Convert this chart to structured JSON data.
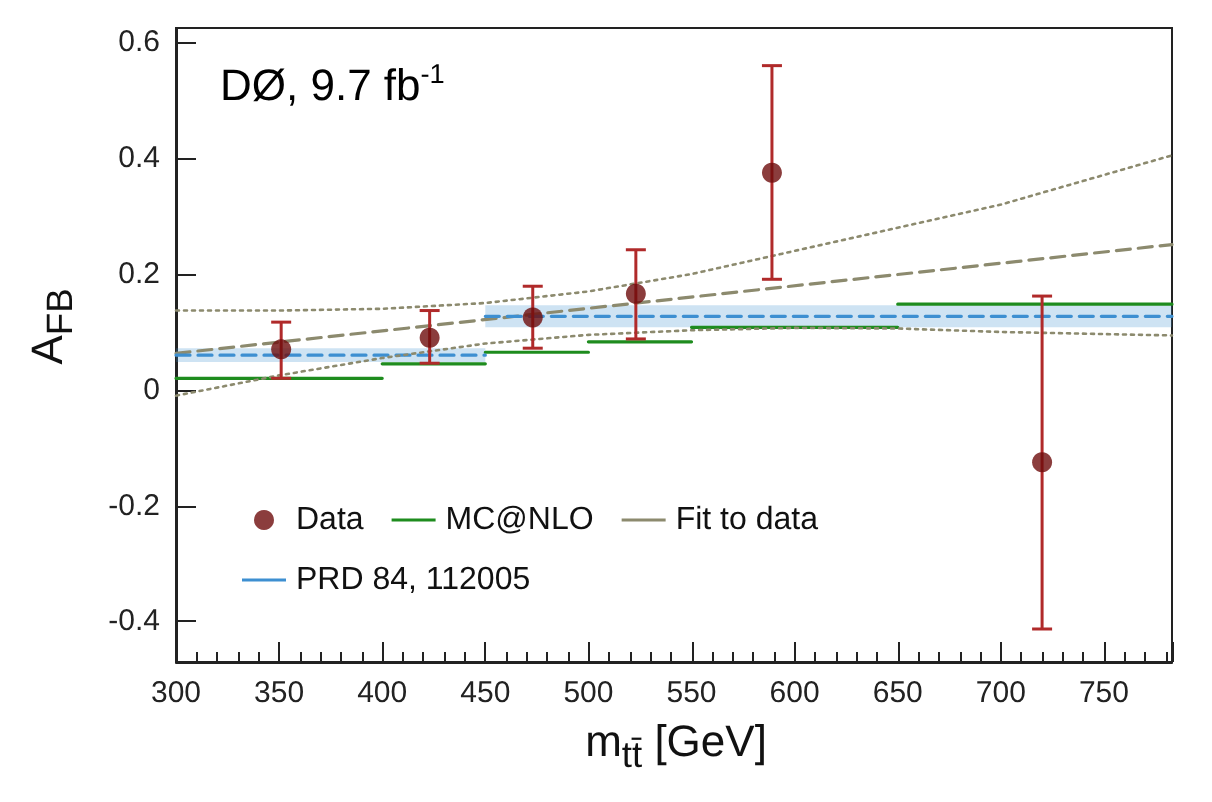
{
  "chart_data": {
    "type": "scatter",
    "annotations": [
      "DØ, 9.7 fb$^{-1}$"
    ],
    "xlabel": "m$_{tt̄}$ [GeV]",
    "ylabel": "A$_{FB}$",
    "xlim": [
      300,
      783
    ],
    "ylim": [
      -0.47,
      0.625
    ],
    "xticks": [
      300,
      350,
      400,
      450,
      500,
      550,
      600,
      650,
      700,
      750
    ],
    "yticks": [
      -0.4,
      -0.2,
      0,
      0.2,
      0.4,
      0.6
    ],
    "legend": "bottom left",
    "series": [
      {
        "name": "Data",
        "color": "#6e0d0d",
        "marker": "circle",
        "x": [
          351,
          423,
          473,
          523,
          589,
          720
        ],
        "values": [
          0.07,
          0.09,
          0.125,
          0.166,
          0.375,
          -0.125
        ],
        "errors": [
          [
            0.02,
            0.117
          ],
          [
            0.046,
            0.137
          ],
          [
            0.072,
            0.179
          ],
          [
            0.088,
            0.242
          ],
          [
            0.191,
            0.56
          ],
          [
            -0.413,
            0.162
          ]
        ]
      },
      {
        "name": "MC@NLO",
        "type": "line",
        "color": "#1e8c1e",
        "line_style": "solid",
        "x": [
          300,
          400,
          400,
          450,
          450,
          500,
          500,
          550,
          550,
          650,
          650,
          783
        ],
        "values": [
          0.02,
          0.02,
          0.045,
          0.045,
          0.065,
          0.065,
          0.083,
          0.083,
          0.108,
          0.108,
          0.148,
          0.148
        ]
      },
      {
        "name": "Fit to data",
        "type": "line",
        "color": "#8c8a6e",
        "line_style": "dashed",
        "x": [
          300,
          783
        ],
        "values": [
          0.063,
          0.251
        ]
      },
      {
        "name": "PRD 84, 112005",
        "type": "line",
        "color": "#3d8fd1",
        "line_style": "dashed",
        "x": [
          300,
          450,
          450,
          783
        ],
        "values": [
          0.06,
          0.06,
          0.127,
          0.127
        ],
        "lower": [
          0.048,
          0.048,
          0.108,
          0.108
        ],
        "upper": [
          0.072,
          0.072,
          0.146,
          0.146
        ]
      },
      {
        "type": "line",
        "color": "#8c8a6e",
        "line_style": "dotted",
        "x": [
          300,
          350,
          400,
          450,
          500,
          550,
          600,
          650,
          700,
          783
        ],
        "values": [
          0.137,
          0.137,
          0.14,
          0.15,
          0.17,
          0.2,
          0.24,
          0.28,
          0.32,
          0.405
        ]
      },
      {
        "type": "line",
        "color": "#8c8a6e",
        "line_style": "dotted",
        "x": [
          300,
          350,
          400,
          450,
          500,
          550,
          600,
          650,
          700,
          783
        ],
        "values": [
          -0.01,
          0.025,
          0.055,
          0.08,
          0.095,
          0.103,
          0.107,
          0.106,
          0.1,
          0.094
        ]
      }
    ]
  }
}
